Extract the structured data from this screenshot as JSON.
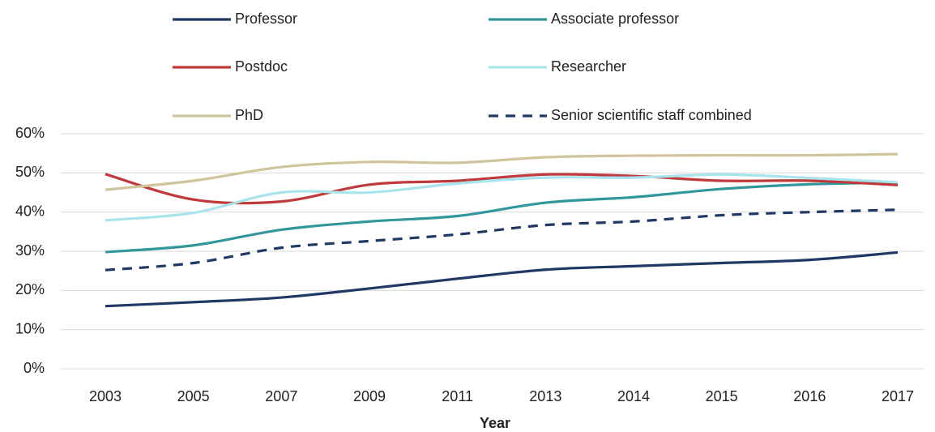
{
  "chart_data": {
    "type": "line",
    "x_label": "Year",
    "categories": [
      "2003",
      "2005",
      "2007",
      "2009",
      "2011",
      "2013",
      "2014",
      "2015",
      "2016",
      "2017"
    ],
    "series": [
      {
        "name": "Professor",
        "color": "#1f3864",
        "style": "solid",
        "values": [
          16,
          17,
          18.2,
          20.5,
          23,
          25.3,
          26.2,
          27,
          27.8,
          29.7
        ]
      },
      {
        "name": "Associate professor",
        "color": "#31979b",
        "style": "solid",
        "values": [
          29.8,
          31.5,
          35.5,
          37.6,
          39,
          42.4,
          43.8,
          45.9,
          47.1,
          47.5
        ]
      },
      {
        "name": "Postdoc",
        "color": "#c0393b",
        "style": "solid",
        "values": [
          49.7,
          43.2,
          42.7,
          47,
          48,
          49.6,
          49.2,
          48,
          48,
          46.9
        ]
      },
      {
        "name": "Researcher",
        "color": "#a8e4ec",
        "style": "solid",
        "values": [
          37.9,
          39.8,
          45,
          45,
          47.3,
          48.8,
          48.8,
          49.6,
          48.7,
          47.6
        ]
      },
      {
        "name": "PhD",
        "color": "#cfc49b",
        "style": "solid",
        "values": [
          45.7,
          48,
          51.5,
          52.8,
          52.6,
          54,
          54.4,
          54.5,
          54.5,
          54.8
        ]
      },
      {
        "name": "Senior scientific staff combined",
        "color": "#1f3864",
        "style": "dashed",
        "values": [
          25.2,
          27,
          30.9,
          32.6,
          34.3,
          36.7,
          37.6,
          39.2,
          40,
          40.6
        ]
      }
    ],
    "ylim": [
      0,
      60
    ],
    "yticks": [
      {
        "value": 0,
        "label": "0%"
      },
      {
        "value": 10,
        "label": "10%"
      },
      {
        "value": 20,
        "label": "20%"
      },
      {
        "value": 30,
        "label": "30%"
      },
      {
        "value": 40,
        "label": "40%"
      },
      {
        "value": 50,
        "label": "50%"
      },
      {
        "value": 60,
        "label": "60%"
      }
    ],
    "grid": true,
    "legend": "top"
  }
}
